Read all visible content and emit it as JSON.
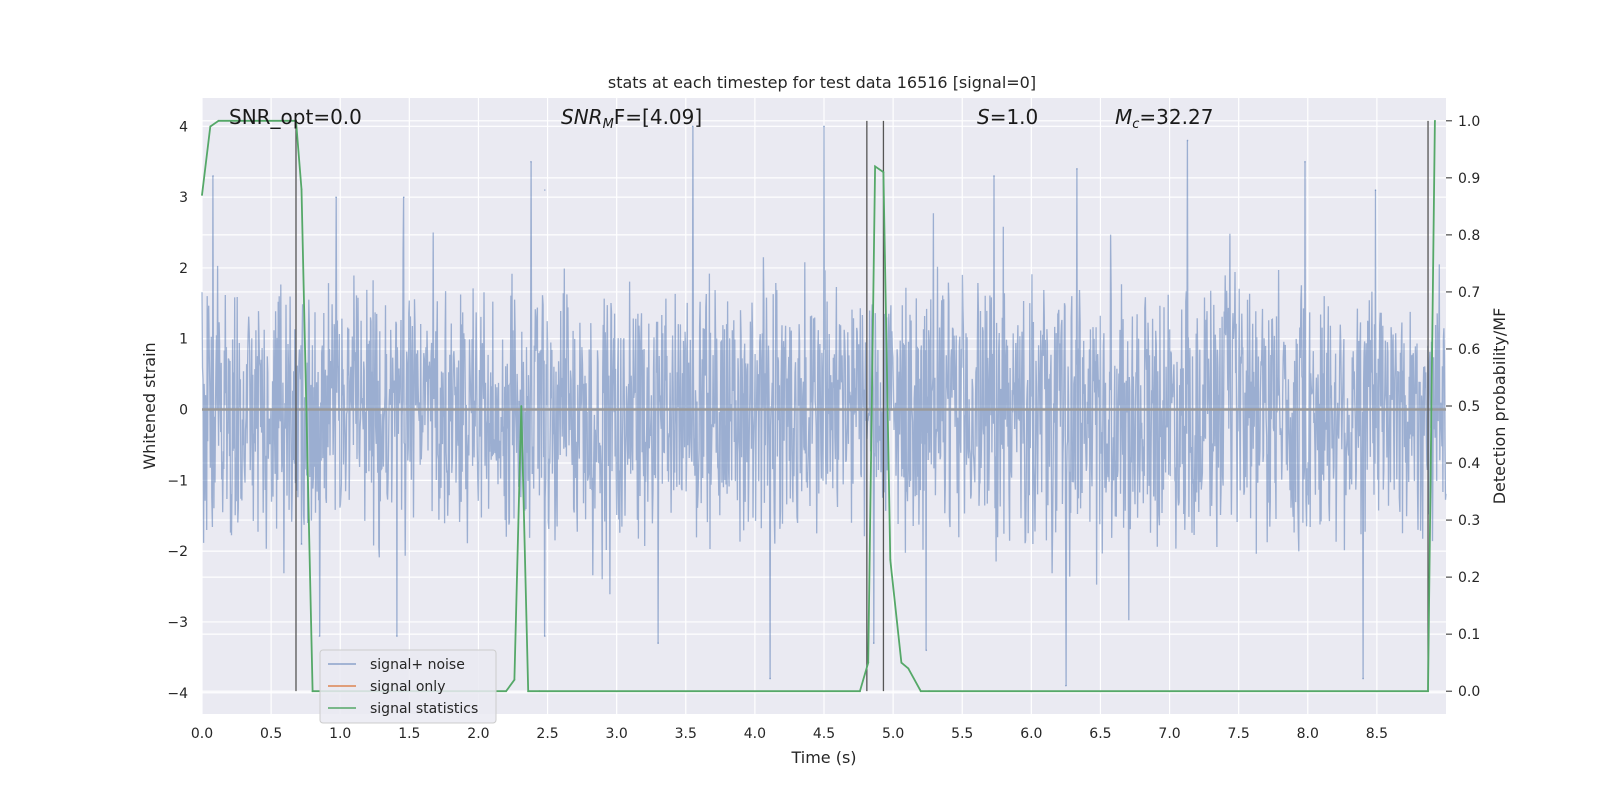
{
  "chart_data": {
    "type": "line",
    "title": "stats at each timestep for test data 16516 [signal=0]",
    "xlabel": "Time (s)",
    "ylabel_left": "Whitened strain",
    "ylabel_right": "Detection probability/MF",
    "xlim": [
      0,
      9.0
    ],
    "ylim_left": [
      -4.3,
      4.4
    ],
    "ylim_right": [
      -0.04,
      1.04
    ],
    "x_ticks": [
      0.0,
      0.5,
      1.0,
      1.5,
      2.0,
      2.5,
      3.0,
      3.5,
      4.0,
      4.5,
      5.0,
      5.5,
      6.0,
      6.5,
      7.0,
      7.5,
      8.0,
      8.5
    ],
    "x_tick_labels": [
      "0.0",
      "0.5",
      "1.0",
      "1.5",
      "2.0",
      "2.5",
      "3.0",
      "3.5",
      "4.0",
      "4.5",
      "5.0",
      "5.5",
      "6.0",
      "6.5",
      "7.0",
      "7.5",
      "8.0",
      "8.5"
    ],
    "y_left_ticks": [
      4,
      3,
      2,
      1,
      0,
      -1,
      -2,
      -3,
      -4
    ],
    "y_left_tick_labels": [
      "4",
      "3",
      "2",
      "1",
      "0",
      "−1",
      "−2",
      "−3",
      "−4"
    ],
    "y_right_ticks": [
      1.0,
      0.9,
      0.8,
      0.7,
      0.6,
      0.5,
      0.4,
      0.3,
      0.2,
      0.1,
      0.0
    ],
    "y_right_tick_labels": [
      "1.0",
      "0.9",
      "0.8",
      "0.7",
      "0.6",
      "0.5",
      "0.4",
      "0.3",
      "0.2",
      "0.1",
      "0.0"
    ],
    "grid": true,
    "legend_position": "lower-left",
    "annotations": {
      "snr_opt": "SNR_opt=0.0",
      "snr_mf_symbol": "SNR",
      "snr_mf_sub": "M",
      "snr_mf_rest": "F=[4.09]",
      "s_symbol": "S",
      "s_rest": "=1.0",
      "mc_symbol": "M",
      "mc_sub": "c",
      "mc_rest": "=32.27"
    },
    "vertical_markers_x": [
      0.68,
      4.81,
      4.93,
      8.87
    ],
    "noise_series": {
      "name": "signal+ noise",
      "color": "#4c72b0",
      "typical_amplitude": 1.6,
      "peak_points": [
        {
          "x": 0.08,
          "y": 3.3
        },
        {
          "x": 0.97,
          "y": 3.0
        },
        {
          "x": 1.46,
          "y": 3.0
        },
        {
          "x": 2.38,
          "y": 3.5
        },
        {
          "x": 2.48,
          "y": 3.1
        },
        {
          "x": 3.55,
          "y": 4.0
        },
        {
          "x": 4.5,
          "y": 4.0
        },
        {
          "x": 5.73,
          "y": 3.3
        },
        {
          "x": 6.33,
          "y": 3.4
        },
        {
          "x": 7.13,
          "y": 3.8
        },
        {
          "x": 7.98,
          "y": 3.5
        },
        {
          "x": 8.49,
          "y": 3.1
        },
        {
          "x": 0.72,
          "y": -1.9
        },
        {
          "x": 0.85,
          "y": -3.2
        },
        {
          "x": 1.41,
          "y": -3.2
        },
        {
          "x": 2.48,
          "y": -3.2
        },
        {
          "x": 3.3,
          "y": -3.3
        },
        {
          "x": 4.11,
          "y": -3.8
        },
        {
          "x": 4.86,
          "y": -3.3
        },
        {
          "x": 5.24,
          "y": -3.4
        },
        {
          "x": 6.25,
          "y": -3.9
        },
        {
          "x": 8.4,
          "y": -3.8
        }
      ]
    },
    "signal_series": {
      "name": "signal only",
      "color": "#dd8452",
      "values_note": "flat at 0"
    },
    "stats_series": {
      "name": "signal statistics",
      "color": "#55a868",
      "x": [
        0.0,
        0.06,
        0.12,
        0.68,
        0.72,
        0.8,
        2.2,
        2.26,
        2.31,
        2.36,
        2.44,
        4.76,
        4.82,
        4.87,
        4.93,
        4.98,
        5.06,
        5.11,
        5.2,
        5.26,
        8.87,
        8.92
      ],
      "y": [
        0.87,
        0.99,
        1.0,
        1.0,
        0.88,
        0.0,
        0.0,
        0.02,
        0.5,
        0.0,
        0.0,
        0.0,
        0.05,
        0.92,
        0.91,
        0.23,
        0.05,
        0.04,
        0.0,
        0.0,
        0.0,
        1.0
      ]
    }
  }
}
